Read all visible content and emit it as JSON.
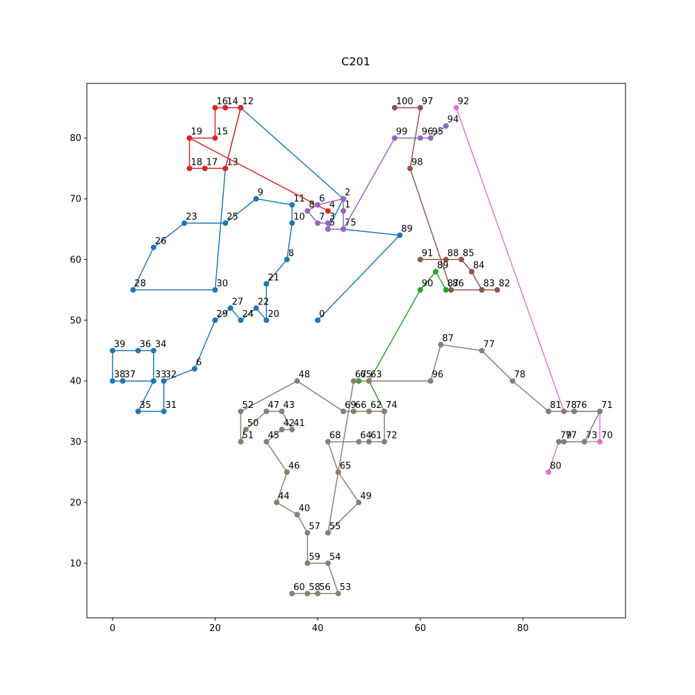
{
  "chart_data": {
    "type": "line",
    "title": "C201",
    "xlim": [
      -5,
      100
    ],
    "ylim": [
      1,
      89
    ],
    "xticks": [
      0,
      20,
      40,
      60,
      80
    ],
    "yticks": [
      10,
      20,
      30,
      40,
      50,
      60,
      70,
      80
    ],
    "grid": false,
    "series": [
      {
        "color": "#1f77b4",
        "points": [
          {
            "label": "0",
            "x": 40,
            "y": 50
          },
          {
            "label": "89",
            "x": 56,
            "y": 64
          },
          {
            "label": "75",
            "x": 45,
            "y": 65
          },
          {
            "label": "5",
            "x": 42,
            "y": 65
          },
          {
            "label": "2",
            "x": 45,
            "y": 70
          },
          {
            "label": "12",
            "x": 25,
            "y": 85
          },
          {
            "label": "13",
            "x": 22,
            "y": 75
          },
          {
            "label": "30",
            "x": 20,
            "y": 55
          },
          {
            "label": "28",
            "x": 4,
            "y": 55
          },
          {
            "label": "26",
            "x": 8,
            "y": 62
          },
          {
            "label": "23",
            "x": 14,
            "y": 66
          },
          {
            "label": "25",
            "x": 22,
            "y": 66
          },
          {
            "label": "9",
            "x": 28,
            "y": 70
          },
          {
            "label": "11",
            "x": 35,
            "y": 69
          },
          {
            "label": "10",
            "x": 35,
            "y": 66
          },
          {
            "label": "8",
            "x": 34,
            "y": 60
          },
          {
            "label": "21",
            "x": 30,
            "y": 56
          },
          {
            "label": "20",
            "x": 30,
            "y": 50
          },
          {
            "label": "22",
            "x": 28,
            "y": 52
          },
          {
            "label": "24",
            "x": 25,
            "y": 50
          },
          {
            "label": "27",
            "x": 23,
            "y": 52
          },
          {
            "label": "29",
            "x": 20,
            "y": 50
          },
          {
            "label": "6",
            "x": 16,
            "y": 42
          },
          {
            "label": "32",
            "x": 10,
            "y": 40
          },
          {
            "label": "31",
            "x": 10,
            "y": 35
          },
          {
            "label": "35",
            "x": 5,
            "y": 35
          },
          {
            "label": "",
            "x": 8,
            "y": 40
          },
          {
            "label": "34",
            "x": 8,
            "y": 45
          },
          {
            "label": "36",
            "x": 5,
            "y": 45
          },
          {
            "label": "39",
            "x": 0,
            "y": 45
          },
          {
            "label": "38",
            "x": 0,
            "y": 40
          },
          {
            "label": "37",
            "x": 2,
            "y": 40
          },
          {
            "label": "33",
            "x": 8,
            "y": 40
          }
        ]
      },
      {
        "color": "#d62728",
        "points": [
          {
            "label": "4",
            "x": 42,
            "y": 68
          },
          {
            "label": "19",
            "x": 15,
            "y": 80
          },
          {
            "label": "15",
            "x": 20,
            "y": 80
          },
          {
            "label": "16",
            "x": 20,
            "y": 85
          },
          {
            "label": "14",
            "x": 22,
            "y": 85
          },
          {
            "label": "",
            "x": 25,
            "y": 85
          },
          {
            "label": "",
            "x": 22,
            "y": 75
          },
          {
            "label": "17",
            "x": 18,
            "y": 75
          },
          {
            "label": "18",
            "x": 15,
            "y": 75
          },
          {
            "label": "",
            "x": 15,
            "y": 80
          }
        ]
      },
      {
        "color": "#9467bd",
        "points": [
          {
            "label": "",
            "x": 45,
            "y": 65
          },
          {
            "label": "1",
            "x": 45,
            "y": 68
          },
          {
            "label": "",
            "x": 45,
            "y": 70
          },
          {
            "label": "6",
            "x": 40,
            "y": 69
          },
          {
            "label": "8",
            "x": 38,
            "y": 68
          },
          {
            "label": "7",
            "x": 40,
            "y": 66
          },
          {
            "label": "3",
            "x": 42,
            "y": 66
          },
          {
            "label": "",
            "x": 42,
            "y": 65
          },
          {
            "label": "",
            "x": 45,
            "y": 65
          },
          {
            "label": "99",
            "x": 55,
            "y": 80
          },
          {
            "label": "96",
            "x": 60,
            "y": 80
          },
          {
            "label": "95",
            "x": 62,
            "y": 80
          },
          {
            "label": "94",
            "x": 65,
            "y": 82
          }
        ]
      },
      {
        "color": "#8c564b",
        "points": [
          {
            "label": "100",
            "x": 55,
            "y": 85
          },
          {
            "label": "97",
            "x": 60,
            "y": 85
          },
          {
            "label": "98",
            "x": 58,
            "y": 75
          },
          {
            "label": "86",
            "x": 66,
            "y": 55
          },
          {
            "label": "83",
            "x": 72,
            "y": 55
          },
          {
            "label": "82",
            "x": 75,
            "y": 55
          },
          {
            "label": "",
            "x": 72,
            "y": 55
          },
          {
            "label": "84",
            "x": 70,
            "y": 58
          },
          {
            "label": "85",
            "x": 68,
            "y": 60
          },
          {
            "label": "88",
            "x": 65,
            "y": 60
          },
          {
            "label": "91",
            "x": 60,
            "y": 60
          }
        ]
      },
      {
        "color": "#2ca02c",
        "points": [
          {
            "label": "65",
            "x": 48,
            "y": 40
          },
          {
            "label": "",
            "x": 50,
            "y": 40
          },
          {
            "label": "",
            "x": 53,
            "y": 35
          },
          {
            "label": "",
            "x": 50,
            "y": 40
          },
          {
            "label": "90",
            "x": 60,
            "y": 55
          },
          {
            "label": "89",
            "x": 63,
            "y": 58
          },
          {
            "label": "87",
            "x": 65,
            "y": 55
          }
        ]
      },
      {
        "color": "#e377c2",
        "points": [
          {
            "label": "92",
            "x": 67,
            "y": 85
          },
          {
            "label": "78",
            "x": 88,
            "y": 35
          },
          {
            "label": "76",
            "x": 90,
            "y": 35
          },
          {
            "label": "",
            "x": 95,
            "y": 35
          },
          {
            "label": "70",
            "x": 95,
            "y": 30
          },
          {
            "label": "73",
            "x": 92,
            "y": 30
          },
          {
            "label": "77",
            "x": 88,
            "y": 30
          },
          {
            "label": "79",
            "x": 87,
            "y": 30
          },
          {
            "label": "80",
            "x": 85,
            "y": 25
          }
        ]
      },
      {
        "color": "#7f7f7f",
        "points": [
          {
            "label": "81",
            "x": 85,
            "y": 35
          },
          {
            "label": "",
            "x": 88,
            "y": 35
          },
          {
            "label": "",
            "x": 90,
            "y": 35
          },
          {
            "label": "71",
            "x": 95,
            "y": 35
          },
          {
            "label": "",
            "x": 92,
            "y": 30
          },
          {
            "label": "",
            "x": 88,
            "y": 30
          },
          {
            "label": "",
            "x": 87,
            "y": 30
          }
        ]
      },
      {
        "color": "#8c7e6f",
        "points": [
          {
            "label": "",
            "x": 85,
            "y": 35
          },
          {
            "label": "78",
            "x": 78,
            "y": 40
          },
          {
            "label": "77",
            "x": 72,
            "y": 45
          },
          {
            "label": "87",
            "x": 64,
            "y": 46
          },
          {
            "label": "96",
            "x": 62,
            "y": 40
          },
          {
            "label": "63",
            "x": 50,
            "y": 40
          },
          {
            "label": "67",
            "x": 47,
            "y": 40
          },
          {
            "label": "65",
            "x": 44,
            "y": 25
          },
          {
            "label": "49",
            "x": 48,
            "y": 20
          },
          {
            "label": "55",
            "x": 42,
            "y": 15
          },
          {
            "label": "",
            "x": 44,
            "y": 25
          },
          {
            "label": "68",
            "x": 42,
            "y": 30
          },
          {
            "label": "64",
            "x": 48,
            "y": 30
          },
          {
            "label": "61",
            "x": 50,
            "y": 30
          },
          {
            "label": "72",
            "x": 53,
            "y": 30
          },
          {
            "label": "74",
            "x": 53,
            "y": 35
          },
          {
            "label": "62",
            "x": 50,
            "y": 35
          },
          {
            "label": "66",
            "x": 47,
            "y": 35
          },
          {
            "label": "69",
            "x": 45,
            "y": 35
          },
          {
            "label": "48",
            "x": 36,
            "y": 40
          },
          {
            "label": "52",
            "x": 25,
            "y": 35
          },
          {
            "label": "51",
            "x": 25,
            "y": 30
          },
          {
            "label": "50",
            "x": 26,
            "y": 32
          },
          {
            "label": "47",
            "x": 30,
            "y": 35
          },
          {
            "label": "43",
            "x": 33,
            "y": 35
          },
          {
            "label": "41",
            "x": 35,
            "y": 32
          },
          {
            "label": "42",
            "x": 33,
            "y": 32
          },
          {
            "label": "45",
            "x": 30,
            "y": 30
          },
          {
            "label": "46",
            "x": 34,
            "y": 25
          },
          {
            "label": "44",
            "x": 32,
            "y": 20
          },
          {
            "label": "40",
            "x": 36,
            "y": 18
          },
          {
            "label": "57",
            "x": 38,
            "y": 15
          },
          {
            "label": "59",
            "x": 38,
            "y": 10
          },
          {
            "label": "54",
            "x": 42,
            "y": 10
          },
          {
            "label": "53",
            "x": 44,
            "y": 5
          },
          {
            "label": "56",
            "x": 40,
            "y": 5
          },
          {
            "label": "58",
            "x": 38,
            "y": 5
          },
          {
            "label": "60",
            "x": 35,
            "y": 5
          }
        ]
      }
    ]
  }
}
